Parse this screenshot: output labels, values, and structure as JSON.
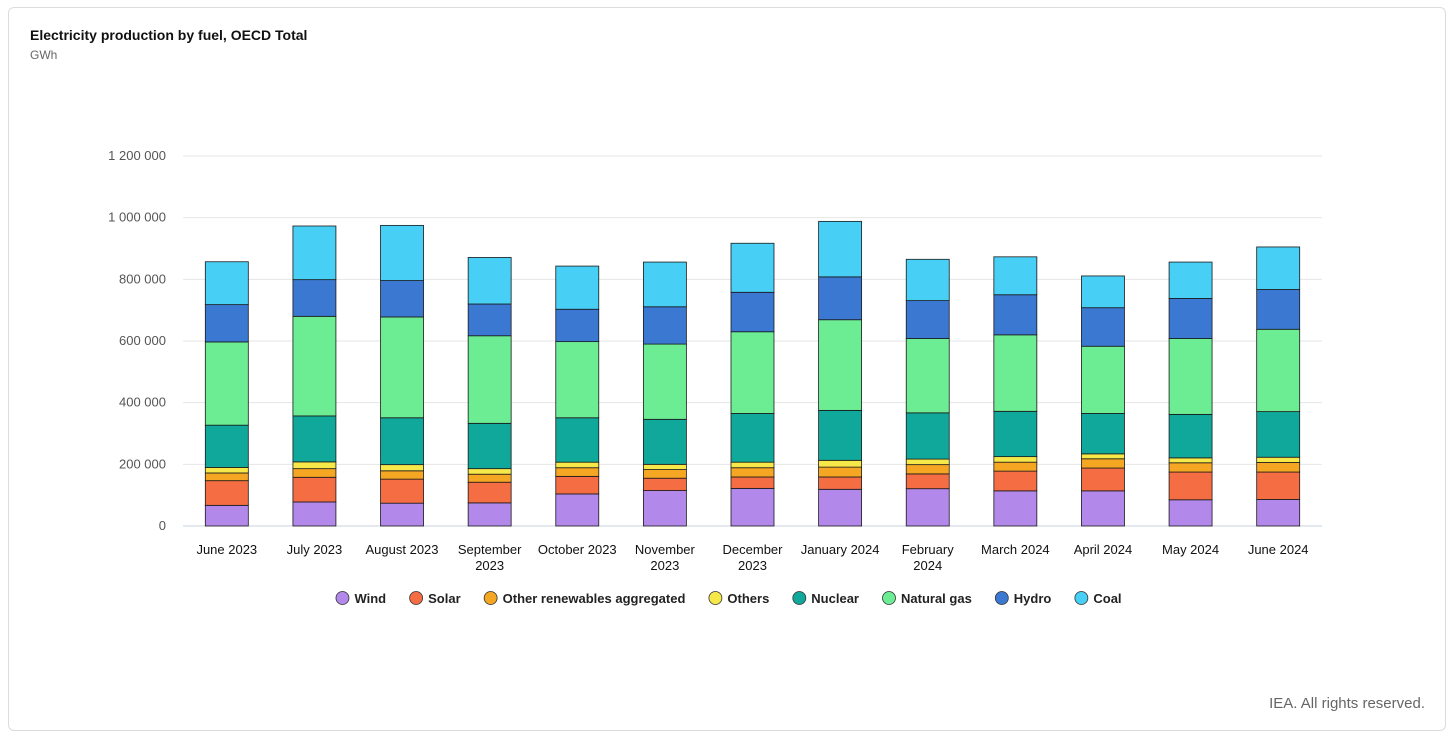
{
  "header": {
    "title": "Electricity production by fuel, OECD Total",
    "subtitle": "GWh"
  },
  "footer": {
    "credit": "IEA. All rights reserved."
  },
  "chart_data": {
    "type": "bar",
    "stacked": true,
    "title": "Electricity production by fuel, OECD Total",
    "unit": "GWh",
    "ylim": [
      0,
      1200000
    ],
    "yticks": [
      0,
      200000,
      400000,
      600000,
      800000,
      1000000,
      1200000
    ],
    "ytick_labels": [
      "0",
      "200 000",
      "400 000",
      "600 000",
      "800 000",
      "1 000 000",
      "1 200 000"
    ],
    "grid": true,
    "legend_position": "bottom",
    "categories": [
      "June 2023",
      "July 2023",
      "August 2023",
      "September 2023",
      "October 2023",
      "November 2023",
      "December 2023",
      "January 2024",
      "February 2024",
      "March 2024",
      "April 2024",
      "May 2024",
      "June 2024"
    ],
    "series": [
      {
        "name": "Wind",
        "color": "#b388eb",
        "values": [
          67000,
          78000,
          74000,
          75000,
          104000,
          115000,
          122000,
          119000,
          121000,
          114000,
          114000,
          85000,
          86000
        ]
      },
      {
        "name": "Solar",
        "color": "#f46d43",
        "values": [
          80000,
          80000,
          78000,
          67000,
          57000,
          40000,
          37000,
          40000,
          48000,
          64000,
          74000,
          90000,
          89000
        ]
      },
      {
        "name": "Other renewables aggregated",
        "color": "#f5a623",
        "values": [
          25000,
          28000,
          27000,
          26000,
          28000,
          28000,
          30000,
          32000,
          30000,
          29000,
          30000,
          30000,
          31000
        ]
      },
      {
        "name": "Others",
        "color": "#f7e84a",
        "values": [
          18000,
          22000,
          20000,
          18000,
          18000,
          17000,
          18000,
          22000,
          18000,
          18000,
          16000,
          16000,
          17000
        ]
      },
      {
        "name": "Nuclear",
        "color": "#10a89a",
        "values": [
          137000,
          149000,
          152000,
          147000,
          144000,
          146000,
          158000,
          162000,
          150000,
          147000,
          131000,
          141000,
          148000
        ]
      },
      {
        "name": "Natural gas",
        "color": "#6ced93",
        "values": [
          270000,
          323000,
          327000,
          284000,
          247000,
          244000,
          265000,
          294000,
          241000,
          248000,
          218000,
          246000,
          267000
        ]
      },
      {
        "name": "Hydro",
        "color": "#3b78d1",
        "values": [
          121000,
          119000,
          118000,
          103000,
          105000,
          121000,
          128000,
          139000,
          123000,
          130000,
          125000,
          130000,
          129000
        ]
      },
      {
        "name": "Coal",
        "color": "#48cff5",
        "values": [
          139000,
          174000,
          179000,
          151000,
          140000,
          145000,
          159000,
          180000,
          134000,
          123000,
          103000,
          118000,
          138000
        ]
      }
    ]
  }
}
